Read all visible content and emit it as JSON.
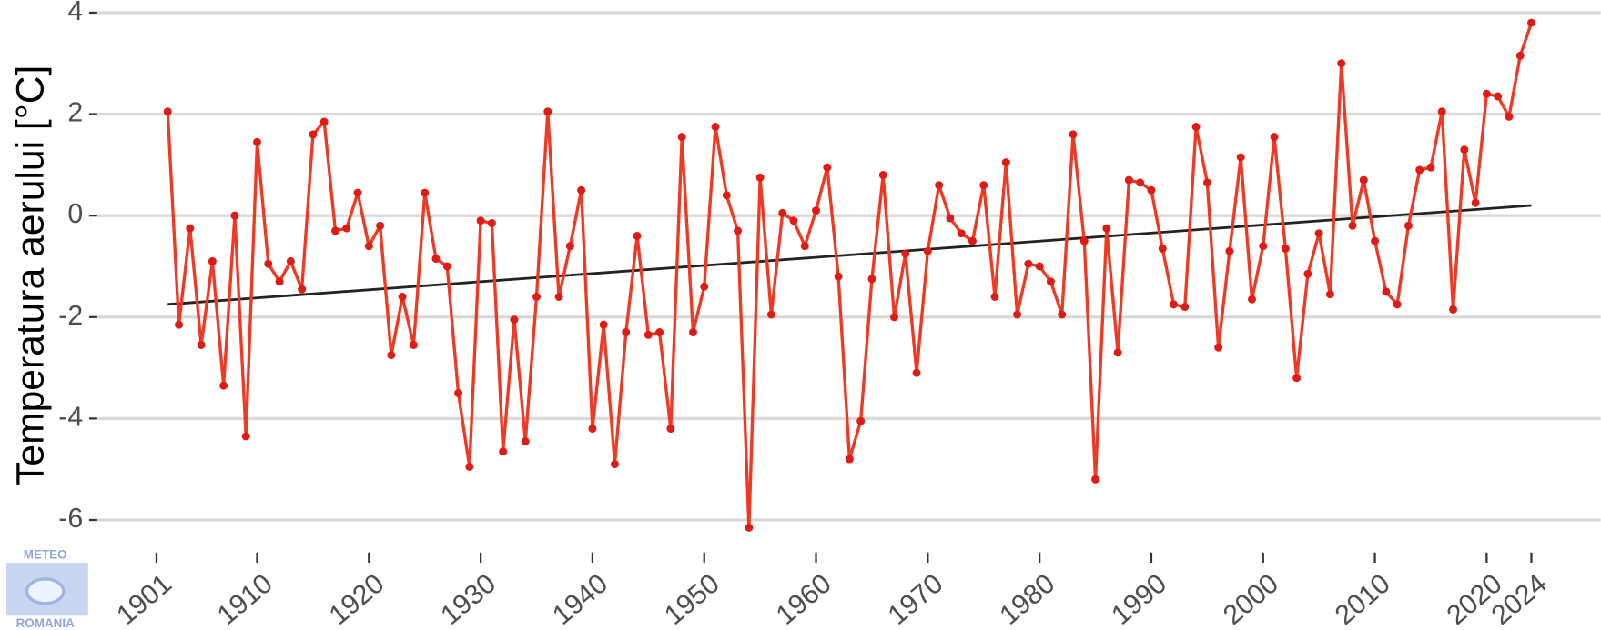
{
  "chart_data": {
    "type": "line",
    "y_label": "Temperatura aerului [°C]",
    "x": [
      1902,
      1903,
      1904,
      1905,
      1906,
      1907,
      1908,
      1909,
      1910,
      1911,
      1912,
      1913,
      1914,
      1915,
      1916,
      1917,
      1918,
      1919,
      1920,
      1921,
      1922,
      1923,
      1924,
      1925,
      1926,
      1927,
      1928,
      1929,
      1930,
      1931,
      1932,
      1933,
      1934,
      1935,
      1936,
      1937,
      1938,
      1939,
      1940,
      1941,
      1942,
      1943,
      1944,
      1945,
      1946,
      1947,
      1948,
      1949,
      1950,
      1951,
      1952,
      1953,
      1954,
      1955,
      1956,
      1957,
      1958,
      1959,
      1960,
      1961,
      1962,
      1963,
      1964,
      1965,
      1966,
      1967,
      1968,
      1969,
      1970,
      1971,
      1972,
      1973,
      1974,
      1975,
      1976,
      1977,
      1978,
      1979,
      1980,
      1981,
      1982,
      1983,
      1984,
      1985,
      1986,
      1987,
      1988,
      1989,
      1990,
      1991,
      1992,
      1993,
      1994,
      1995,
      1996,
      1997,
      1998,
      1999,
      2000,
      2001,
      2002,
      2003,
      2004,
      2005,
      2006,
      2007,
      2008,
      2009,
      2010,
      2011,
      2012,
      2013,
      2014,
      2015,
      2016,
      2017,
      2018,
      2019,
      2020,
      2021,
      2022,
      2023,
      2024
    ],
    "values": [
      2.05,
      -2.15,
      -0.25,
      -2.55,
      -0.9,
      -3.35,
      0.0,
      -4.35,
      1.45,
      -0.95,
      -1.3,
      -0.9,
      -1.45,
      1.6,
      1.85,
      -0.3,
      -0.25,
      0.45,
      -0.6,
      -0.2,
      -2.75,
      -1.6,
      -2.55,
      0.45,
      -0.85,
      -1.0,
      -3.5,
      -4.95,
      -0.1,
      -0.15,
      -4.65,
      -2.05,
      -4.45,
      -1.6,
      2.05,
      -1.6,
      -0.6,
      0.5,
      -4.2,
      -2.15,
      -4.9,
      -2.3,
      -0.4,
      -2.35,
      -2.3,
      -4.2,
      1.55,
      -2.3,
      -1.4,
      1.75,
      0.4,
      -0.3,
      -6.15,
      0.75,
      -1.95,
      0.05,
      -0.1,
      -0.6,
      0.1,
      0.95,
      -1.2,
      -4.8,
      -4.05,
      -1.25,
      0.8,
      -2.0,
      -0.75,
      -3.1,
      -0.7,
      0.6,
      -0.05,
      -0.35,
      -0.5,
      0.6,
      -1.6,
      1.05,
      -1.95,
      -0.95,
      -1.0,
      -1.3,
      -1.95,
      1.6,
      -0.5,
      -5.2,
      -0.25,
      -2.7,
      0.7,
      0.65,
      0.5,
      -0.65,
      -1.75,
      -1.8,
      1.75,
      0.65,
      -2.6,
      -0.7,
      1.15,
      -1.65,
      -0.6,
      1.55,
      -0.65,
      -3.2,
      -1.15,
      -0.35,
      -1.55,
      3.0,
      -0.2,
      0.7,
      -0.5,
      -1.5,
      -1.75,
      -0.2,
      0.9,
      0.95,
      2.05,
      -1.85,
      1.3,
      0.25,
      2.4,
      2.35,
      1.95,
      3.15,
      3.8
    ],
    "color": "#ee3a24",
    "marker_color": "#e01b14",
    "trend": {
      "x": [
        1902,
        2024
      ],
      "values": [
        -1.75,
        0.2
      ],
      "color": "#222222"
    },
    "xlim": [
      1895.7,
      2030.2
    ],
    "ylim": [
      -6.4,
      4.25
    ],
    "xticks": [
      1901,
      1910,
      1920,
      1930,
      1940,
      1950,
      1960,
      1970,
      1980,
      1990,
      2000,
      2010,
      2020,
      2024
    ],
    "yticks": [
      -6,
      -4,
      -2,
      0,
      2,
      4
    ],
    "grid": true
  },
  "logo": {
    "top": "METEO",
    "bottom": "ROMANIA"
  }
}
